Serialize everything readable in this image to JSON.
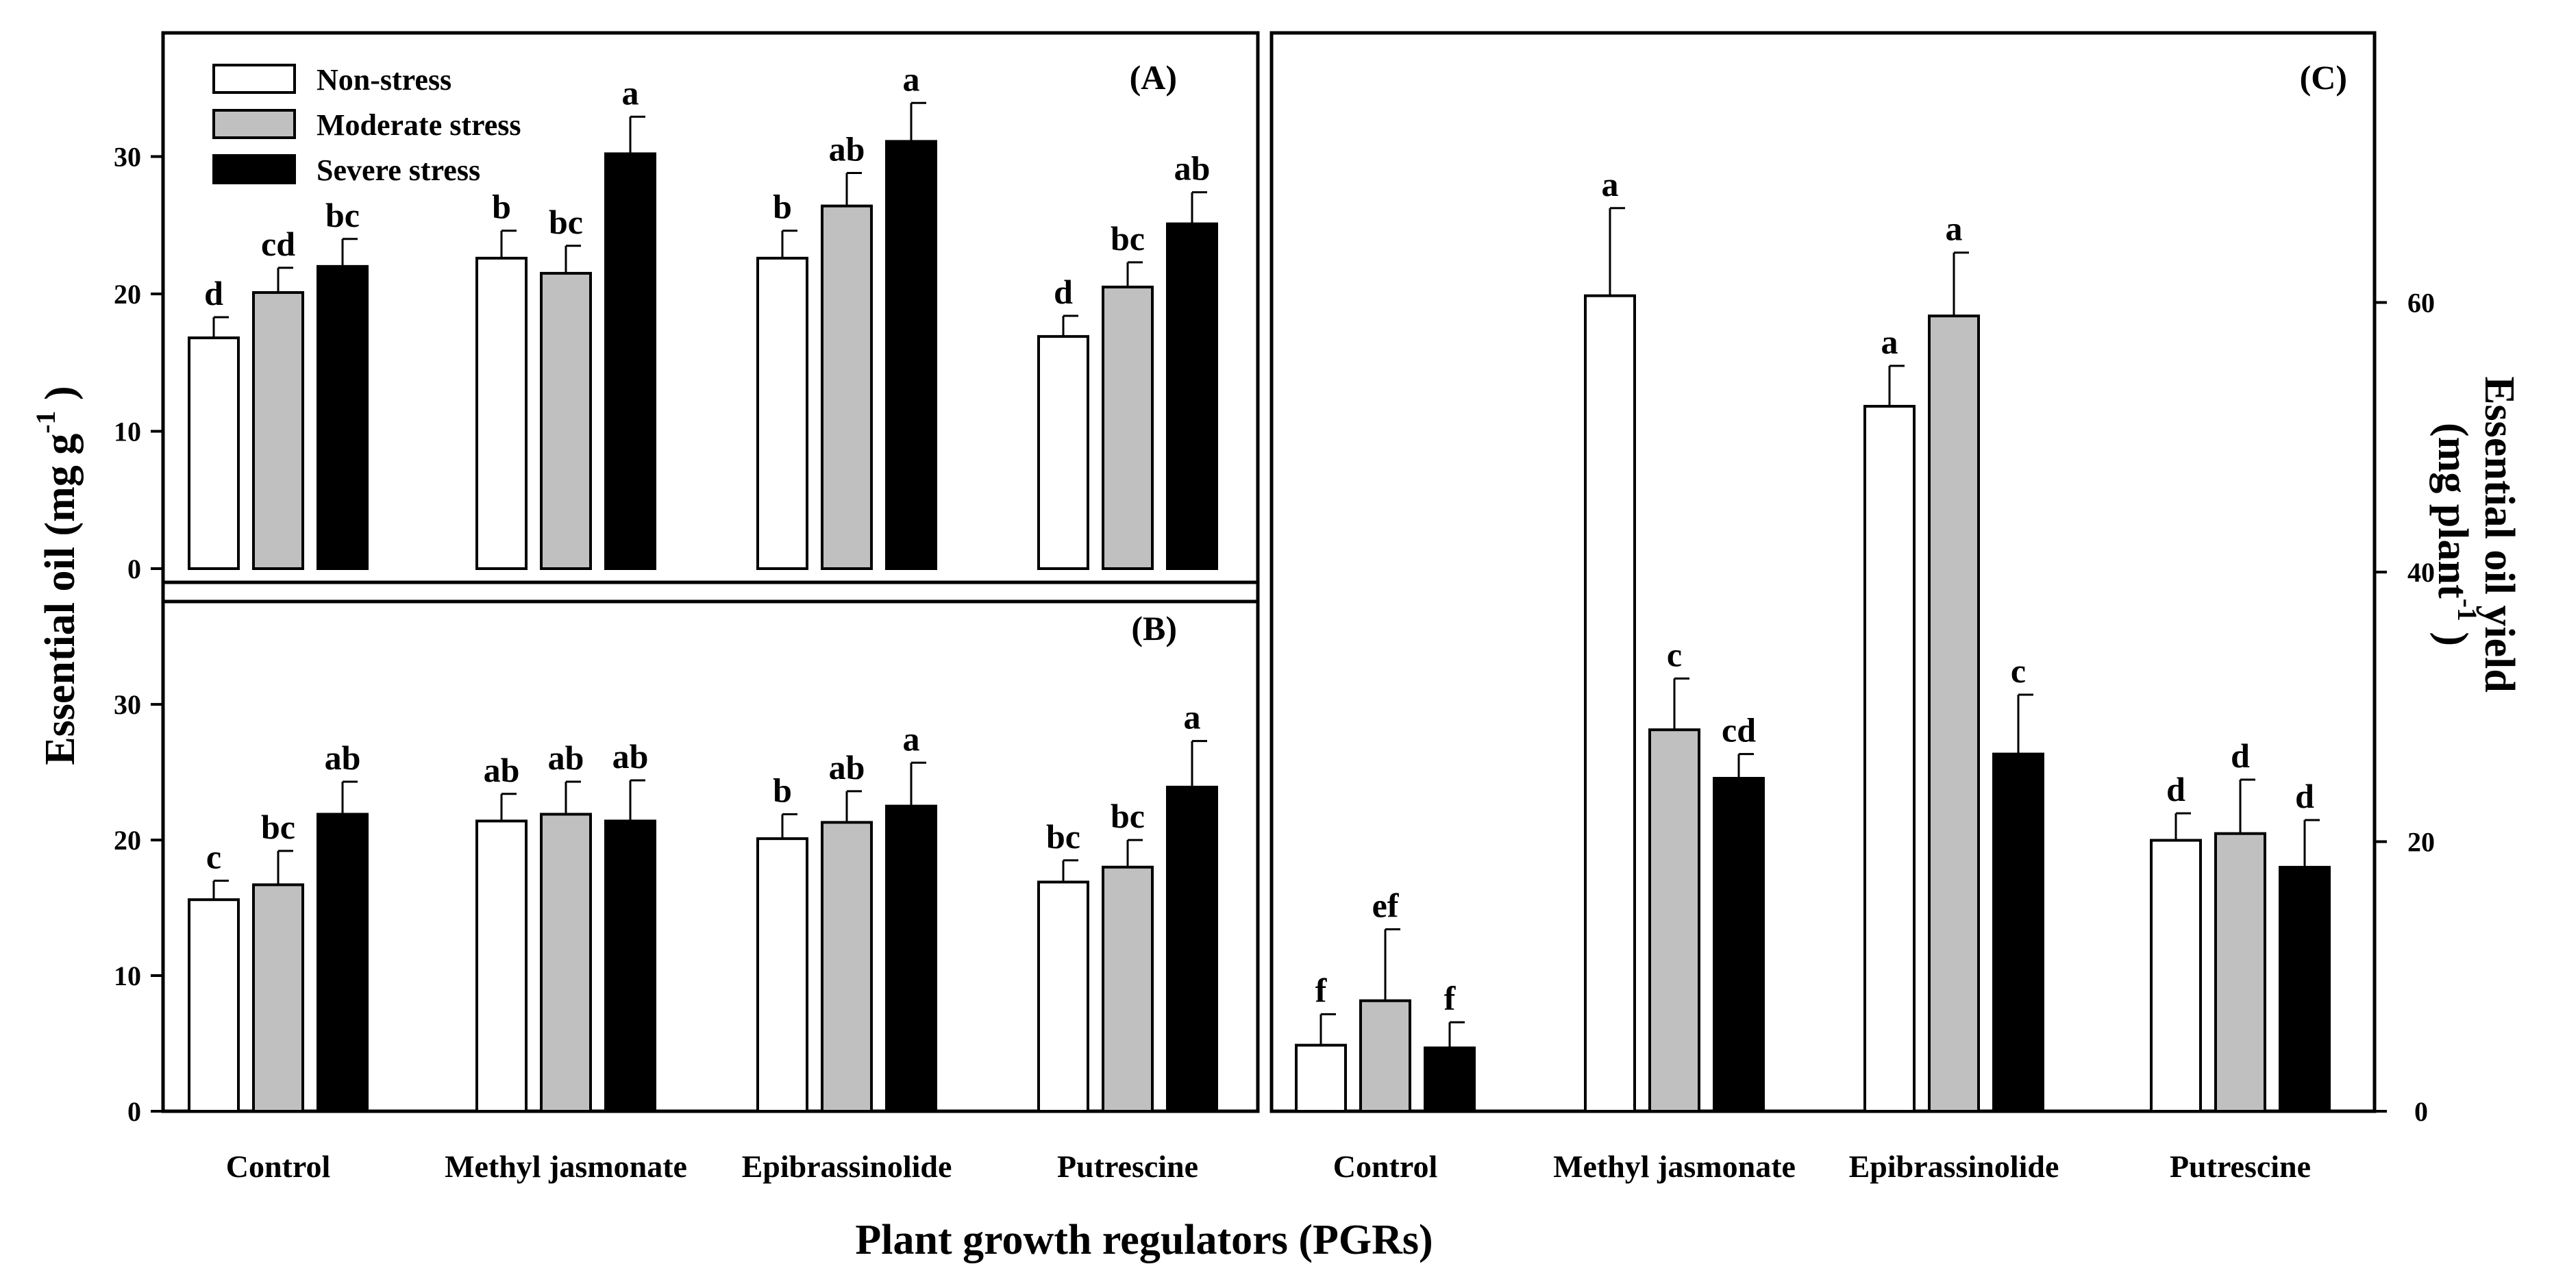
{
  "figure": {
    "x_title": "Plant growth regulators (PGRs)",
    "categories": [
      "Control",
      "Methyl jasmonate",
      "Epibrassinolide",
      "Putrescine"
    ],
    "series_colors": [
      "#ffffff",
      "#c0c0c0",
      "#000000"
    ]
  },
  "chart_data": [
    {
      "panel": "(A)",
      "type": "bar",
      "ylabel": "Essential oil (mg g-1)",
      "ylim": [
        0,
        39
      ],
      "yticks": [
        0,
        10,
        20,
        30
      ],
      "categories": [
        "Control",
        "Methyl jasmonate",
        "Epibrassinolide",
        "Putrescine"
      ],
      "legend_position": "top-left",
      "series": [
        {
          "name": "Non-stress",
          "color": "#ffffff",
          "values": [
            16.8,
            22.6,
            22.6,
            16.9
          ],
          "errors": [
            1.5,
            2.0,
            2.0,
            1.5
          ],
          "letters": [
            "d",
            "b",
            "b",
            "d"
          ]
        },
        {
          "name": "Moderate stress",
          "color": "#c0c0c0",
          "values": [
            20.1,
            21.5,
            26.4,
            20.5
          ],
          "errors": [
            1.8,
            2.0,
            2.4,
            1.8
          ],
          "letters": [
            "cd",
            "bc",
            "ab",
            "bc"
          ]
        },
        {
          "name": "Severe stress",
          "color": "#000000",
          "values": [
            22.0,
            30.2,
            31.1,
            25.1
          ],
          "errors": [
            2.0,
            2.7,
            2.8,
            2.3
          ],
          "letters": [
            "bc",
            "a",
            "a",
            "ab"
          ]
        }
      ]
    },
    {
      "panel": "(B)",
      "type": "bar",
      "ylabel": "",
      "ylim": [
        0,
        39
      ],
      "yticks": [
        0,
        10,
        20,
        30
      ],
      "categories": [
        "Control",
        "Methyl jasmonate",
        "Epibrassinolide",
        "Putrescine"
      ],
      "series": [
        {
          "name": "Non-stress",
          "color": "#ffffff",
          "values": [
            15.6,
            21.4,
            20.1,
            16.9
          ],
          "errors": [
            1.4,
            2.0,
            1.8,
            1.6
          ],
          "letters": [
            "c",
            "ab",
            "b",
            "bc"
          ]
        },
        {
          "name": "Moderate stress",
          "color": "#c0c0c0",
          "values": [
            16.7,
            21.9,
            21.3,
            18.0
          ],
          "errors": [
            2.5,
            2.4,
            2.3,
            2.0
          ],
          "letters": [
            "bc",
            "ab",
            "ab",
            "bc"
          ]
        },
        {
          "name": "Severe stress",
          "color": "#000000",
          "values": [
            21.9,
            21.4,
            22.5,
            23.9
          ],
          "errors": [
            2.4,
            3.0,
            3.2,
            3.4
          ],
          "letters": [
            "ab",
            "ab",
            "a",
            "a"
          ]
        }
      ]
    },
    {
      "panel": "(C)",
      "type": "bar",
      "ylabel": "Essential oil yield (mg plant-1)",
      "ylim": [
        0,
        80
      ],
      "yticks": [
        0,
        20,
        40,
        60
      ],
      "categories": [
        "Control",
        "Methyl jasmonate",
        "Epibrassinolide",
        "Putrescine"
      ],
      "series": [
        {
          "name": "Non-stress",
          "color": "#ffffff",
          "values": [
            4.9,
            60.5,
            52.3,
            20.1
          ],
          "errors": [
            2.3,
            6.5,
            3.0,
            2.0
          ],
          "letters": [
            "f",
            "a",
            "a",
            "d"
          ]
        },
        {
          "name": "Moderate stress",
          "color": "#c0c0c0",
          "values": [
            8.2,
            28.3,
            59.0,
            20.6
          ],
          "errors": [
            5.3,
            3.8,
            4.7,
            4.0
          ],
          "letters": [
            "ef",
            "c",
            "a",
            "d"
          ]
        },
        {
          "name": "Severe stress",
          "color": "#000000",
          "values": [
            4.7,
            24.7,
            26.5,
            18.1
          ],
          "errors": [
            1.9,
            1.8,
            4.4,
            3.5
          ],
          "letters": [
            "f",
            "cd",
            "c",
            "d"
          ]
        }
      ]
    }
  ]
}
